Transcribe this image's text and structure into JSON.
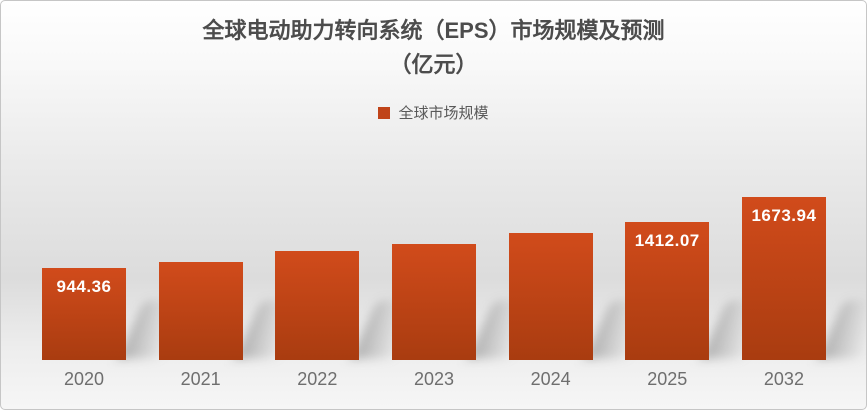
{
  "title": {
    "line1": "全球电动助力转向系统（EPS）市场规模及预测",
    "line2": "（亿元）"
  },
  "legend": {
    "label": "全球市场规模"
  },
  "colors": {
    "bar_top": "#d14b1b",
    "bar_bottom": "#a93c10",
    "legend_marker": "#c04419",
    "title_text": "#4c4c4c",
    "axis_text": "#6e6e6e",
    "data_label_text": "#ffffff"
  },
  "chart_data": {
    "type": "bar",
    "title": "全球电动助力转向系统（EPS）市场规模及预测（亿元）",
    "series_name": "全球市场规模",
    "categories": [
      "2020",
      "2021",
      "2022",
      "2023",
      "2024",
      "2025",
      "2032"
    ],
    "values": [
      944.36,
      1008,
      1120,
      1188,
      1300,
      1412.07,
      1673.94
    ],
    "data_labels": [
      "944.36",
      "",
      "",
      "",
      "",
      "1412.07",
      "1673.94"
    ],
    "values_estimated": [
      false,
      true,
      true,
      true,
      true,
      false,
      false
    ],
    "ylim": [
      0,
      1850
    ],
    "grid": false,
    "legend_position": "top-center",
    "xlabel": "",
    "ylabel": "亿元"
  }
}
